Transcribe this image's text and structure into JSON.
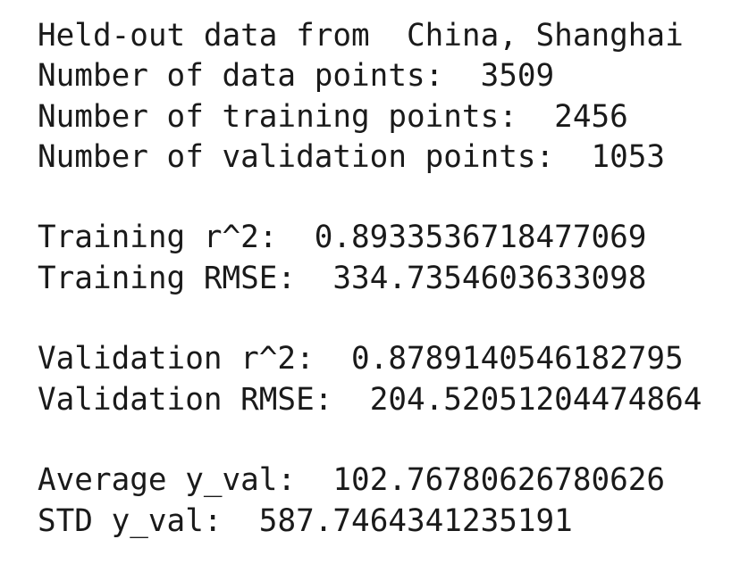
{
  "output": {
    "groups": [
      {
        "lines": [
          {
            "label": "Held-out data from",
            "value": "China, Shanghai"
          },
          {
            "label": "Number of data points:",
            "value": "3509"
          },
          {
            "label": "Number of training points:",
            "value": "2456"
          },
          {
            "label": "Number of validation points:",
            "value": "1053"
          }
        ]
      },
      {
        "lines": [
          {
            "label": "Training r^2:",
            "value": "0.8933536718477069"
          },
          {
            "label": "Training RMSE:",
            "value": "334.7354603633098"
          }
        ]
      },
      {
        "lines": [
          {
            "label": "Validation r^2:",
            "value": "0.8789140546182795"
          },
          {
            "label": "Validation RMSE:",
            "value": "204.52051204474864"
          }
        ]
      },
      {
        "lines": [
          {
            "label": "Average y_val:",
            "value": "102.76780626780626"
          },
          {
            "label": "STD y_val:",
            "value": "587.7464341235191"
          }
        ]
      }
    ]
  }
}
